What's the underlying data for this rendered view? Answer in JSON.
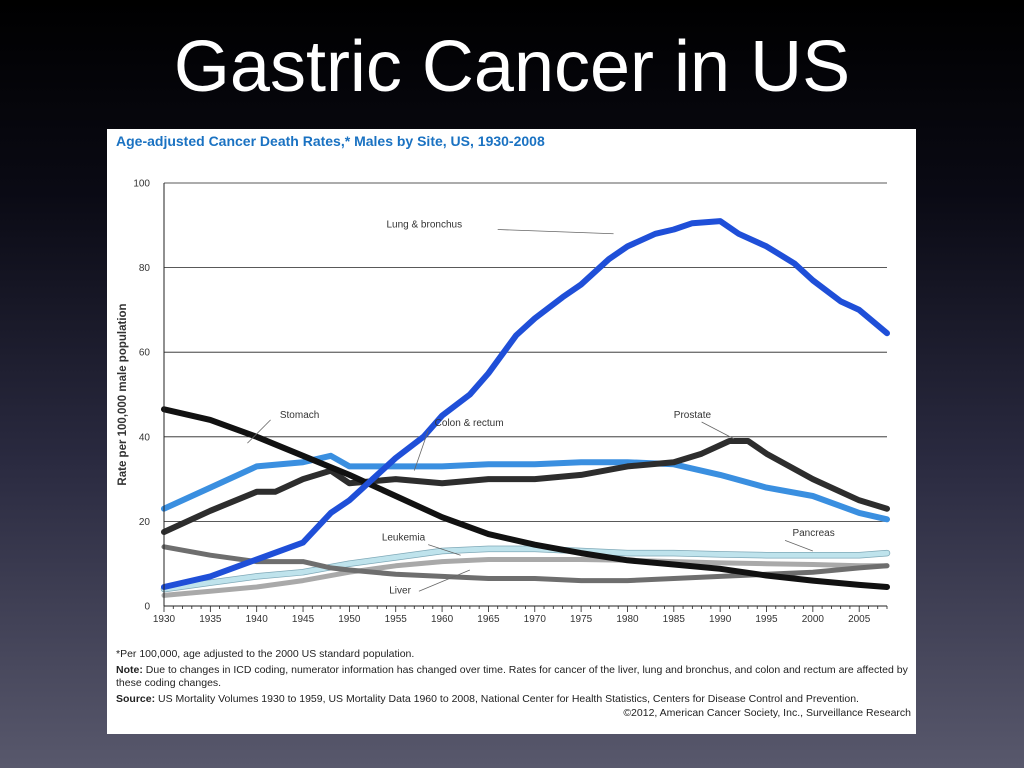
{
  "slide": {
    "title": "Gastric Cancer in US"
  },
  "figure": {
    "notes": {
      "footnote": "*Per 100,000, age adjusted to the 2000 US standard population.",
      "note_label": "Note:",
      "note_text": "Due to changes in ICD coding, numerator information has changed over time. Rates for cancer of the liver, lung and bronchus, and colon and rectum are affected by these coding changes.",
      "source_label": "Source:",
      "source_text": "US Mortality Volumes 1930 to 1959, US Mortality Data 1960 to 2008, National Center for Health Statistics, Centers for Disease Control and Prevention.",
      "copyright": "©2012, American Cancer Society, Inc., Surveillance Research"
    }
  },
  "chart_data": {
    "type": "line",
    "title": "Age-adjusted Cancer Death Rates,* Males by Site, US, 1930-2008",
    "xlabel": "",
    "ylabel": "Rate per 100,000 male population",
    "xlim": [
      1930,
      2008
    ],
    "ylim": [
      0,
      100
    ],
    "xticks": [
      1930,
      1935,
      1940,
      1945,
      1950,
      1955,
      1960,
      1965,
      1970,
      1975,
      1980,
      1985,
      1990,
      1995,
      2000,
      2005
    ],
    "yticks": [
      0,
      20,
      40,
      60,
      80,
      100
    ],
    "grid": "horizontal",
    "legend": "inline-labels",
    "series": [
      {
        "name": "Lung & bronchus",
        "color": "#1f4fd8",
        "x": [
          1930,
          1935,
          1940,
          1945,
          1948,
          1950,
          1953,
          1955,
          1958,
          1960,
          1963,
          1965,
          1968,
          1970,
          1973,
          1975,
          1978,
          1980,
          1983,
          1985,
          1987,
          1990,
          1992,
          1995,
          1998,
          2000,
          2003,
          2005,
          2008
        ],
        "values": [
          4.5,
          7,
          11,
          15,
          22,
          25,
          31,
          35,
          40,
          45,
          50,
          55,
          64,
          68,
          73,
          76,
          82,
          85,
          88,
          89,
          90.5,
          91,
          88,
          85,
          81,
          77,
          72,
          70,
          64.5
        ]
      },
      {
        "name": "Stomach",
        "color": "#111111",
        "x": [
          1930,
          1935,
          1940,
          1945,
          1950,
          1955,
          1960,
          1965,
          1970,
          1975,
          1980,
          1985,
          1990,
          1995,
          2000,
          2005,
          2008
        ],
        "values": [
          46.5,
          44,
          40,
          35.5,
          31,
          26,
          21,
          17,
          14.5,
          12.5,
          10.8,
          9.8,
          8.8,
          7.2,
          6,
          5,
          4.5
        ]
      },
      {
        "name": "Colon & rectum",
        "color": "#3a8fe0",
        "x": [
          1930,
          1935,
          1940,
          1945,
          1948,
          1950,
          1955,
          1960,
          1965,
          1970,
          1975,
          1980,
          1985,
          1990,
          1995,
          2000,
          2005,
          2008
        ],
        "values": [
          23,
          28,
          33,
          34,
          35.5,
          33,
          33,
          33,
          33.5,
          33.5,
          34,
          34,
          33.5,
          31,
          28,
          26,
          22,
          20.5
        ]
      },
      {
        "name": "Prostate",
        "color": "#2d2d2d",
        "x": [
          1930,
          1935,
          1940,
          1942,
          1945,
          1948,
          1950,
          1955,
          1960,
          1965,
          1970,
          1975,
          1980,
          1985,
          1988,
          1991,
          1993,
          1995,
          2000,
          2005,
          2008
        ],
        "values": [
          17.5,
          22.5,
          27,
          27,
          30,
          32,
          29,
          30,
          29,
          30,
          30,
          31,
          33,
          34,
          36,
          39,
          39,
          36,
          30,
          25,
          23
        ]
      },
      {
        "name": "Pancreas",
        "color": "#bfe3ec",
        "x": [
          1930,
          1935,
          1940,
          1945,
          1950,
          1955,
          1960,
          1965,
          1970,
          1975,
          1980,
          1985,
          1990,
          1995,
          2000,
          2005,
          2008
        ],
        "values": [
          4,
          5.5,
          7,
          8,
          10,
          11.5,
          13,
          13.5,
          13.5,
          13,
          12.5,
          12.5,
          12.2,
          12,
          12,
          12,
          12.5
        ]
      },
      {
        "name": "Leukemia",
        "color": "#a9a9a9",
        "x": [
          1930,
          1935,
          1940,
          1945,
          1950,
          1955,
          1960,
          1965,
          1970,
          1975,
          1980,
          1985,
          1990,
          1995,
          2000,
          2005,
          2008
        ],
        "values": [
          2.5,
          3.5,
          4.5,
          6,
          8,
          9.5,
          10.5,
          11,
          11,
          11,
          10.8,
          10.5,
          10.2,
          10,
          9.8,
          9.5,
          9.5
        ]
      },
      {
        "name": "Liver",
        "color": "#6e6e6e",
        "x": [
          1930,
          1935,
          1940,
          1945,
          1948,
          1950,
          1955,
          1960,
          1965,
          1970,
          1975,
          1980,
          1985,
          1990,
          1995,
          2000,
          2005,
          2008
        ],
        "values": [
          14,
          12,
          10.5,
          10.5,
          9,
          8.5,
          7.5,
          7,
          6.5,
          6.5,
          6,
          6,
          6.5,
          7,
          7.5,
          8,
          9,
          9.5
        ]
      }
    ],
    "annotations": [
      {
        "text": "Lung & bronchus",
        "x": 1954,
        "y": 89.5
      },
      {
        "text": "Stomach",
        "x": 1942.5,
        "y": 44.5
      },
      {
        "text": "Colon & rectum",
        "x": 1959.2,
        "y": 42.5
      },
      {
        "text": "Prostate",
        "x": 1985,
        "y": 44.5
      },
      {
        "text": "Pancreas",
        "x": 1997.8,
        "y": 16.5
      },
      {
        "text": "Leukemia",
        "x": 1953.5,
        "y": 15.5
      },
      {
        "text": "Liver",
        "x": 1954.3,
        "y": 3
      }
    ]
  }
}
